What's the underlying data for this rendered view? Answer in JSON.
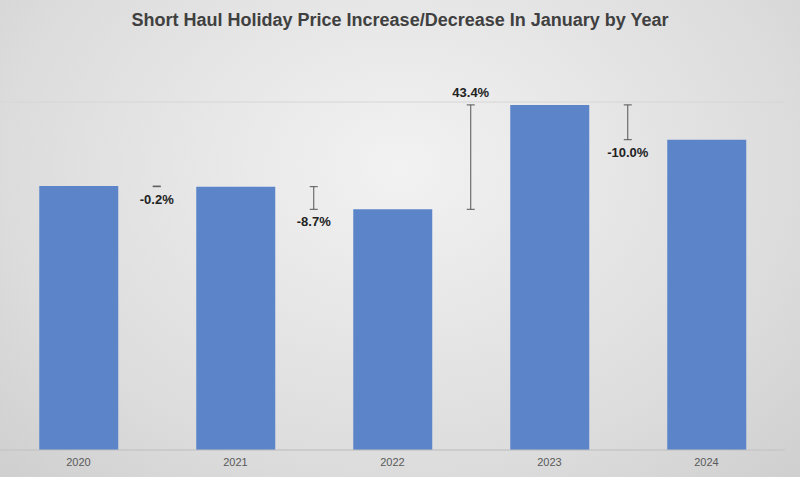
{
  "chart_data": {
    "type": "bar",
    "title": "Short Haul Holiday Price Increase/Decrease In January by Year",
    "categories": [
      "2020",
      "2021",
      "2022",
      "2023",
      "2024"
    ],
    "values": [
      4.55,
      4.54,
      4.15,
      5.95,
      5.35
    ],
    "color": "#5b84c9",
    "ylim": [
      0,
      6
    ],
    "yticks": [
      0,
      1,
      2,
      3,
      4,
      5,
      6
    ],
    "grid": true,
    "tick_labels": "x",
    "changes": [
      {
        "value": -0.2,
        "label": "-0.2%"
      },
      {
        "value": -8.7,
        "label": "-8.7%"
      },
      {
        "value": 43.4,
        "label": "43.4%"
      },
      {
        "value": -10.0,
        "label": "-10.0%"
      }
    ]
  }
}
